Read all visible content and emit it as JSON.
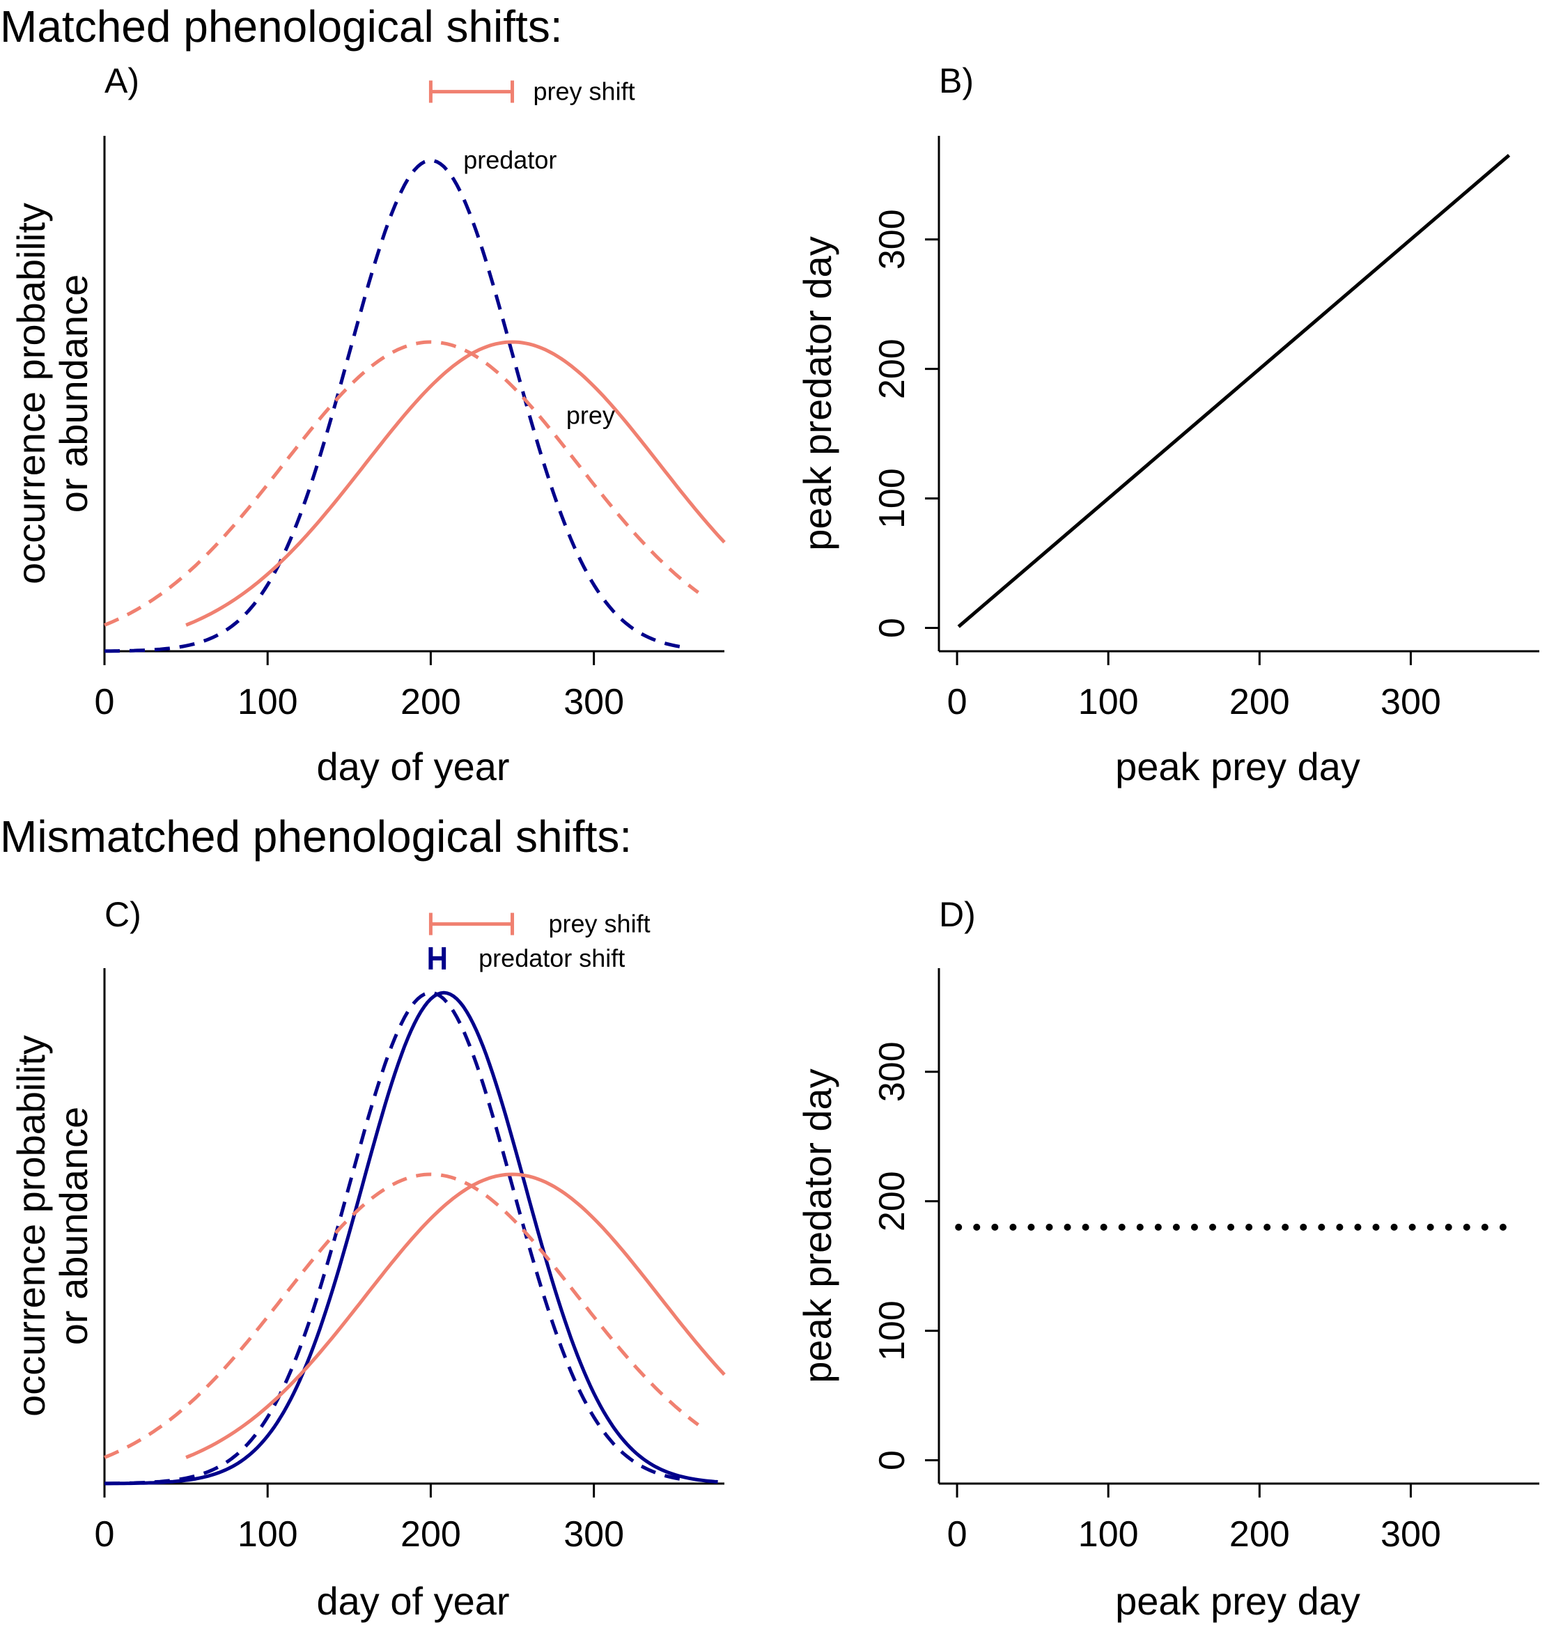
{
  "sections": {
    "matched_title": "Matched phenological shifts:",
    "mismatched_title": "Mismatched phenological shifts:"
  },
  "colors": {
    "prey": "#F08070",
    "predator": "#00008B",
    "line": "#000000"
  },
  "chart_data": [
    {
      "panel": "A)",
      "type": "line",
      "xlabel": "day of year",
      "ylabel_lines": [
        "occurrence probability",
        "or abundance"
      ],
      "xlim": [
        0,
        380
      ],
      "ylim": [
        0,
        1.05
      ],
      "xticks": [
        0,
        100,
        200,
        300
      ],
      "yticks": [],
      "series": [
        {
          "name": "predator",
          "style": "dashed",
          "color": "#00008B",
          "mean": 200,
          "sd": 50,
          "height": 1.0,
          "x_range": [
            0,
            355
          ]
        },
        {
          "name": "prey",
          "style": "dashed",
          "color": "#F08070",
          "mean": 200,
          "sd": 90,
          "height": 0.63,
          "x_range": [
            0,
            365
          ]
        },
        {
          "name": "prey",
          "style": "solid",
          "color": "#F08070",
          "mean": 250,
          "sd": 90,
          "height": 0.63,
          "x_range": [
            50,
            380
          ]
        }
      ],
      "annotations": [
        {
          "text": "prey shift",
          "color": "#F08070",
          "bar_from": 200,
          "bar_to": 250,
          "level": 1.14
        },
        {
          "text": "predator",
          "x": 220,
          "y": 1.0
        },
        {
          "text": "prey",
          "x": 283,
          "y": 0.48
        }
      ]
    },
    {
      "panel": "B)",
      "type": "line",
      "xlabel": "peak prey day",
      "ylabel": "peak predator day",
      "xlim": [
        -12,
        385
      ],
      "ylim": [
        -18,
        380
      ],
      "xticks": [
        0,
        100,
        200,
        300
      ],
      "yticks": [
        0,
        100,
        200,
        300
      ],
      "series": [
        {
          "style": "solid",
          "color": "#000000",
          "x": [
            1,
            365
          ],
          "y": [
            1,
            365
          ]
        }
      ]
    },
    {
      "panel": "C)",
      "type": "line",
      "xlabel": "day of year",
      "ylabel_lines": [
        "occurrence probability",
        "or abundance"
      ],
      "xlim": [
        0,
        380
      ],
      "ylim": [
        0,
        1.05
      ],
      "xticks": [
        0,
        100,
        200,
        300
      ],
      "yticks": [],
      "series": [
        {
          "style": "dashed",
          "color": "#00008B",
          "mean": 200,
          "sd": 50,
          "height": 1.0,
          "x_range": [
            0,
            355
          ]
        },
        {
          "style": "solid",
          "color": "#00008B",
          "mean": 208,
          "sd": 50,
          "height": 1.0,
          "x_range": [
            0,
            377
          ]
        },
        {
          "style": "dashed",
          "color": "#F08070",
          "mean": 200,
          "sd": 90,
          "height": 0.63,
          "x_range": [
            0,
            365
          ]
        },
        {
          "style": "solid",
          "color": "#F08070",
          "mean": 250,
          "sd": 90,
          "height": 0.63,
          "x_range": [
            50,
            380
          ]
        }
      ],
      "annotations": [
        {
          "text": "prey shift",
          "color": "#F08070",
          "bar_from": 200,
          "bar_to": 250,
          "level": 1.14
        },
        {
          "text": "predator shift",
          "color": "#00008B",
          "bar_from": 200,
          "bar_to": 208,
          "level": 1.07
        }
      ]
    },
    {
      "panel": "D)",
      "type": "scatter",
      "xlabel": "peak prey day",
      "ylabel": "peak predator day",
      "xlim": [
        -12,
        385
      ],
      "ylim": [
        -18,
        380
      ],
      "xticks": [
        0,
        100,
        200,
        300
      ],
      "yticks": [
        0,
        100,
        200,
        300
      ],
      "series": [
        {
          "style": "dotted",
          "color": "#000000",
          "x_from": 1,
          "x_to": 365,
          "x_step": 12,
          "y": 180
        }
      ]
    }
  ]
}
